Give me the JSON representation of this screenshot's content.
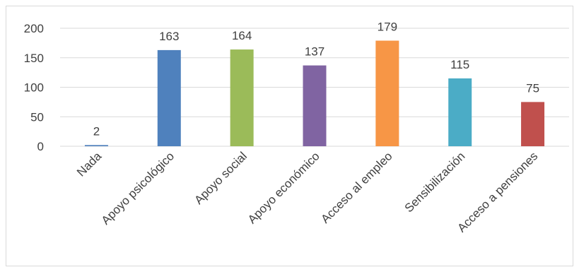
{
  "chart_data": {
    "type": "bar",
    "categories": [
      "Nada",
      "Apoyo psicológico",
      "Apoyo social",
      "Apoyo económico",
      "Acceso al empleo",
      "Sensibilización",
      "Acceso a pensiones"
    ],
    "values": [
      2,
      163,
      164,
      137,
      179,
      115,
      75
    ],
    "colors": [
      "#4f81bd",
      "#4f81bd",
      "#9bbb59",
      "#8064a2",
      "#f79646",
      "#4bacc6",
      "#c0504d"
    ],
    "ylim": [
      0,
      200
    ],
    "yticks": [
      0,
      50,
      100,
      150,
      200
    ],
    "grid": true,
    "data_labels": true,
    "title": "",
    "xlabel": "",
    "ylabel": ""
  }
}
